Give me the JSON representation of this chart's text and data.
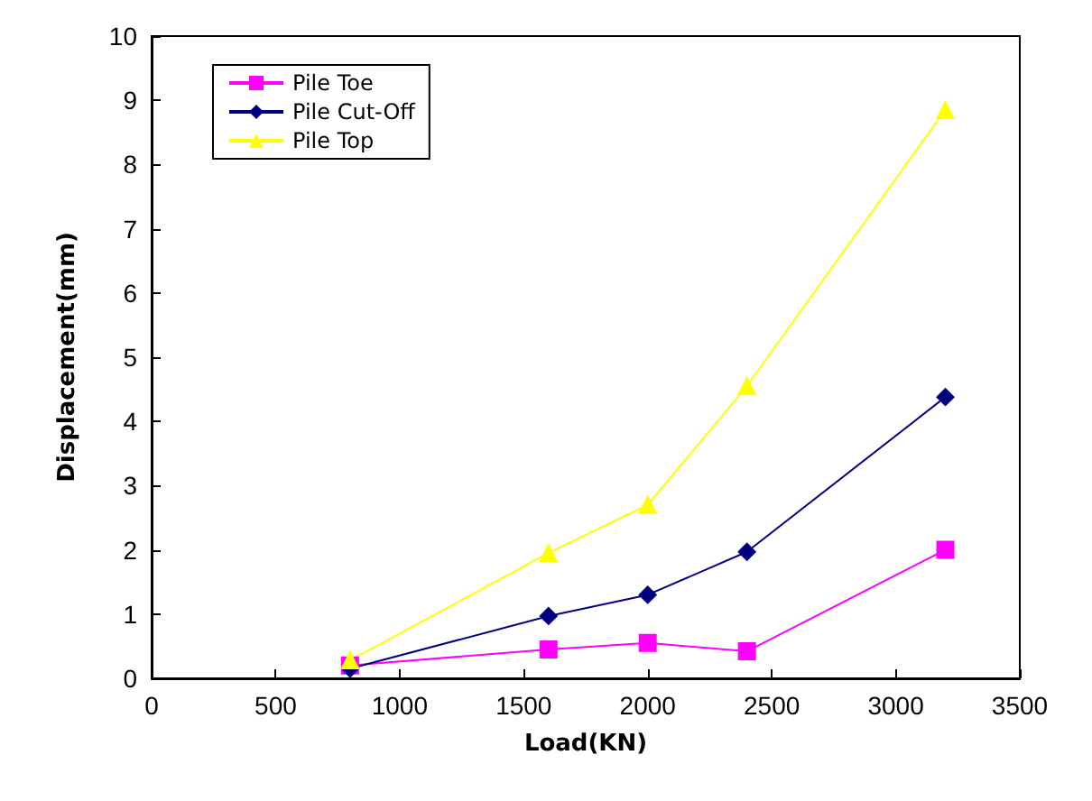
{
  "chart_data": {
    "type": "line",
    "xlabel": "Load(KN)",
    "ylabel": "Displacement(mm)",
    "x": [
      800,
      1600,
      2000,
      2400,
      3200
    ],
    "series": [
      {
        "name": "Pile Toe",
        "color": "#ff00ff",
        "marker": "square",
        "values": [
          0.2,
          0.45,
          0.55,
          0.42,
          2.0
        ]
      },
      {
        "name": "Pile Cut-Off",
        "color": "#000080",
        "marker": "diamond",
        "values": [
          0.15,
          0.97,
          1.3,
          1.97,
          4.38
        ]
      },
      {
        "name": "Pile Top",
        "color": "#ffff00",
        "marker": "triangle",
        "values": [
          0.28,
          1.95,
          2.7,
          4.55,
          8.85
        ]
      }
    ],
    "xlim": [
      0,
      3500
    ],
    "xticks": [
      0,
      500,
      1000,
      1500,
      2000,
      2500,
      3000,
      3500
    ],
    "ylim": [
      0,
      10
    ],
    "yticks": [
      0,
      1,
      2,
      3,
      4,
      5,
      6,
      7,
      8,
      9,
      10
    ],
    "grid": false,
    "legend": "top left"
  }
}
